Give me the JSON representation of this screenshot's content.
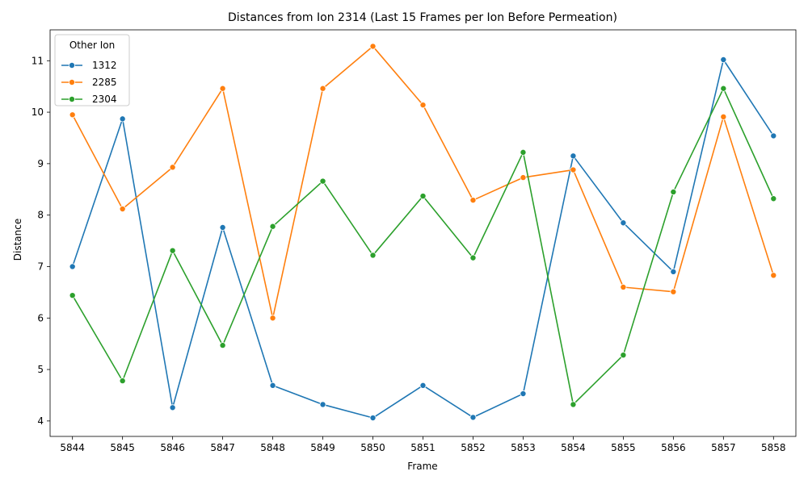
{
  "chart_data": {
    "type": "line",
    "title": "Distances from Ion 2314 (Last 15 Frames per Ion Before Permeation)",
    "xlabel": "Frame",
    "ylabel": "Distance",
    "x": [
      5844,
      5845,
      5846,
      5847,
      5848,
      5849,
      5850,
      5851,
      5852,
      5853,
      5854,
      5855,
      5856,
      5857,
      5858
    ],
    "ylim": [
      3.7,
      11.6
    ],
    "yticks": [
      4,
      5,
      6,
      7,
      8,
      9,
      10,
      11
    ],
    "grid": false,
    "legend": {
      "title": "Other Ion",
      "position": "top-left"
    },
    "series": [
      {
        "name": "1312",
        "color": "#1f77b4",
        "values": [
          7.0,
          9.87,
          4.26,
          7.76,
          4.69,
          4.32,
          4.06,
          4.69,
          4.07,
          4.53,
          9.15,
          7.85,
          6.9,
          11.02,
          9.54
        ]
      },
      {
        "name": "2285",
        "color": "#ff7f0e",
        "values": [
          9.95,
          8.12,
          8.93,
          10.46,
          6.0,
          10.46,
          11.28,
          10.14,
          8.29,
          8.73,
          8.88,
          6.6,
          6.51,
          9.91,
          6.83
        ]
      },
      {
        "name": "2304",
        "color": "#2ca02c",
        "values": [
          6.44,
          4.78,
          7.31,
          5.47,
          7.78,
          8.66,
          7.22,
          8.37,
          7.17,
          9.22,
          4.32,
          5.28,
          8.45,
          10.46,
          8.32
        ]
      }
    ]
  }
}
